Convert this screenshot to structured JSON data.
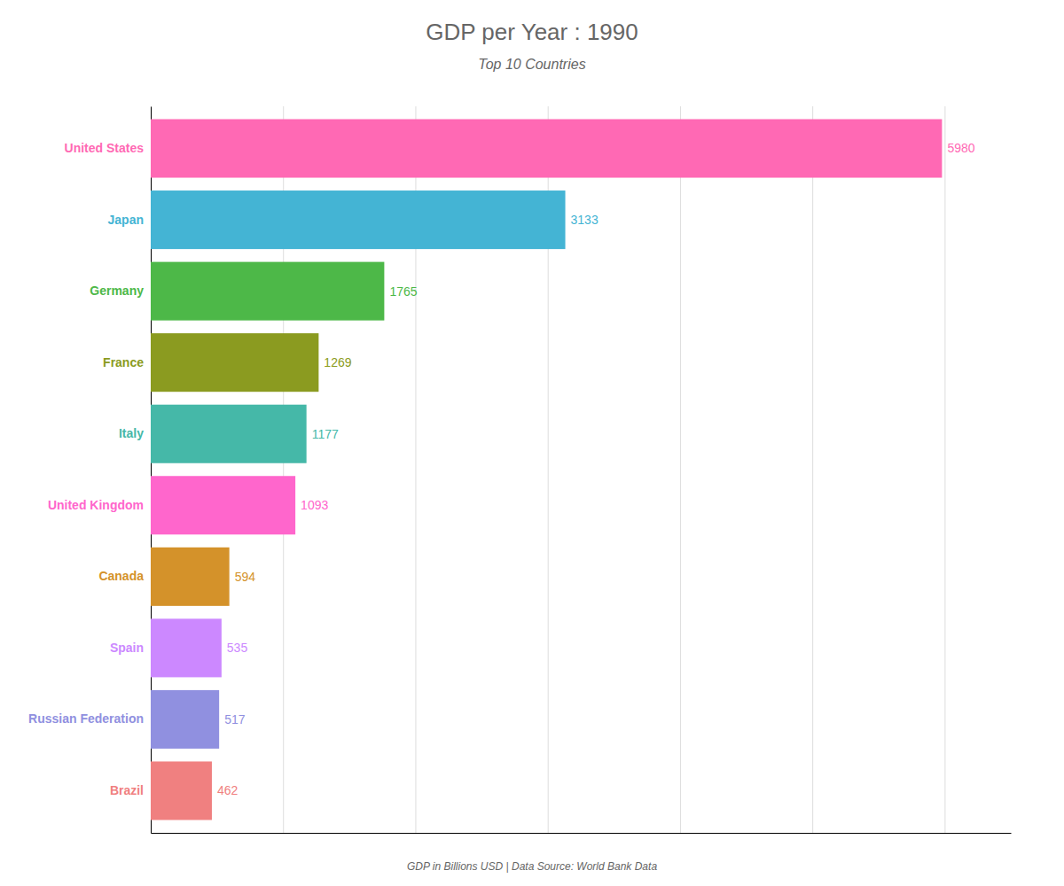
{
  "chart_data": {
    "type": "bar",
    "orientation": "horizontal",
    "title": "GDP per Year : 1990",
    "subtitle": "Top 10 Countries",
    "caption": "GDP in Billions USD | Data Source: World Bank Data",
    "categories": [
      "United States",
      "Japan",
      "Germany",
      "France",
      "Italy",
      "United Kingdom",
      "Canada",
      "Spain",
      "Russian Federation",
      "Brazil"
    ],
    "values": [
      5980,
      3133,
      1765,
      1269,
      1177,
      1093,
      594,
      535,
      517,
      462
    ],
    "colors": [
      "#FF69B4",
      "#44B4D4",
      "#4DB848",
      "#8B9B20",
      "#45B8A8",
      "#FF66CC",
      "#D4922A",
      "#CC88FF",
      "#9090E0",
      "#F08080"
    ],
    "xlim": [
      0,
      6500
    ],
    "xticks": [
      0,
      1000,
      2000,
      3000,
      4000,
      5000,
      6000
    ],
    "grid": true,
    "data_labels": true,
    "tick_labels": "y"
  }
}
